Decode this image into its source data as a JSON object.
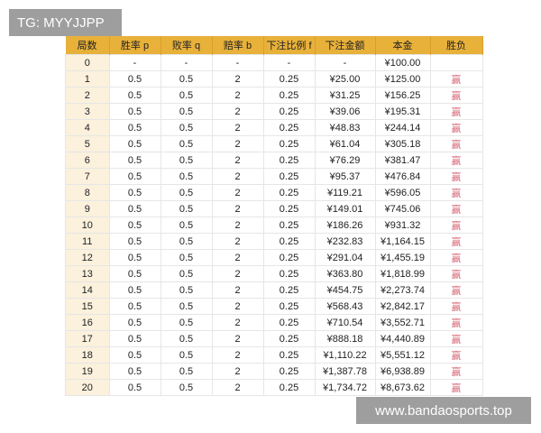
{
  "watermark_top": "TG: MYYJJPP",
  "watermark_bottom": "www.bandaosports.top",
  "accent": "#e8b13a",
  "headers": [
    "局数",
    "胜率 p",
    "败率 q",
    "赔率 b",
    "下注比例 f",
    "下注金额",
    "本金",
    "胜负"
  ],
  "rows": [
    [
      "0",
      "-",
      "-",
      "-",
      "-",
      "-",
      "¥100.00",
      ""
    ],
    [
      "1",
      "0.5",
      "0.5",
      "2",
      "0.25",
      "¥25.00",
      "¥125.00",
      "赢"
    ],
    [
      "2",
      "0.5",
      "0.5",
      "2",
      "0.25",
      "¥31.25",
      "¥156.25",
      "赢"
    ],
    [
      "3",
      "0.5",
      "0.5",
      "2",
      "0.25",
      "¥39.06",
      "¥195.31",
      "赢"
    ],
    [
      "4",
      "0.5",
      "0.5",
      "2",
      "0.25",
      "¥48.83",
      "¥244.14",
      "赢"
    ],
    [
      "5",
      "0.5",
      "0.5",
      "2",
      "0.25",
      "¥61.04",
      "¥305.18",
      "赢"
    ],
    [
      "6",
      "0.5",
      "0.5",
      "2",
      "0.25",
      "¥76.29",
      "¥381.47",
      "赢"
    ],
    [
      "7",
      "0.5",
      "0.5",
      "2",
      "0.25",
      "¥95.37",
      "¥476.84",
      "赢"
    ],
    [
      "8",
      "0.5",
      "0.5",
      "2",
      "0.25",
      "¥119.21",
      "¥596.05",
      "赢"
    ],
    [
      "9",
      "0.5",
      "0.5",
      "2",
      "0.25",
      "¥149.01",
      "¥745.06",
      "赢"
    ],
    [
      "10",
      "0.5",
      "0.5",
      "2",
      "0.25",
      "¥186.26",
      "¥931.32",
      "赢"
    ],
    [
      "11",
      "0.5",
      "0.5",
      "2",
      "0.25",
      "¥232.83",
      "¥1,164.15",
      "赢"
    ],
    [
      "12",
      "0.5",
      "0.5",
      "2",
      "0.25",
      "¥291.04",
      "¥1,455.19",
      "赢"
    ],
    [
      "13",
      "0.5",
      "0.5",
      "2",
      "0.25",
      "¥363.80",
      "¥1,818.99",
      "赢"
    ],
    [
      "14",
      "0.5",
      "0.5",
      "2",
      "0.25",
      "¥454.75",
      "¥2,273.74",
      "赢"
    ],
    [
      "15",
      "0.5",
      "0.5",
      "2",
      "0.25",
      "¥568.43",
      "¥2,842.17",
      "赢"
    ],
    [
      "16",
      "0.5",
      "0.5",
      "2",
      "0.25",
      "¥710.54",
      "¥3,552.71",
      "赢"
    ],
    [
      "17",
      "0.5",
      "0.5",
      "2",
      "0.25",
      "¥888.18",
      "¥4,440.89",
      "赢"
    ],
    [
      "18",
      "0.5",
      "0.5",
      "2",
      "0.25",
      "¥1,110.22",
      "¥5,551.12",
      "赢"
    ],
    [
      "19",
      "0.5",
      "0.5",
      "2",
      "0.25",
      "¥1,387.78",
      "¥6,938.89",
      "赢"
    ],
    [
      "20",
      "0.5",
      "0.5",
      "2",
      "0.25",
      "¥1,734.72",
      "¥8,673.62",
      "赢"
    ]
  ]
}
